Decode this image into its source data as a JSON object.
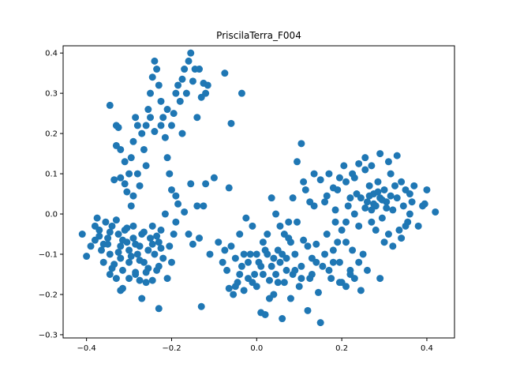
{
  "chart_data": {
    "type": "scatter",
    "title": "PriscilaTerra_F004",
    "xlabel": "",
    "ylabel": "",
    "xlim": [
      -0.455,
      0.465
    ],
    "ylim": [
      -0.308,
      0.418
    ],
    "xticks": [
      -0.4,
      -0.2,
      0.0,
      0.2,
      0.4
    ],
    "xtick_labels": [
      "−0.4",
      "−0.2",
      "0.0",
      "0.2",
      "0.4"
    ],
    "yticks": [
      -0.3,
      -0.2,
      -0.1,
      0.0,
      0.1,
      0.2,
      0.3,
      0.4
    ],
    "ytick_labels": [
      "−0.3",
      "−0.2",
      "−0.1",
      "0.0",
      "0.1",
      "0.2",
      "0.3",
      "0.4"
    ],
    "grid": false,
    "color": "#1f77b4",
    "points": [
      [
        -0.41,
        -0.05
      ],
      [
        -0.4,
        -0.105
      ],
      [
        -0.38,
        -0.065
      ],
      [
        -0.375,
        -0.01
      ],
      [
        -0.37,
        -0.04
      ],
      [
        -0.365,
        -0.09
      ],
      [
        -0.36,
        -0.12
      ],
      [
        -0.355,
        -0.02
      ],
      [
        -0.35,
        -0.06
      ],
      [
        -0.345,
        -0.1
      ],
      [
        -0.34,
        -0.135
      ],
      [
        -0.34,
        -0.03
      ],
      [
        -0.335,
        0.085
      ],
      [
        -0.33,
        0.17
      ],
      [
        -0.33,
        -0.015
      ],
      [
        -0.325,
        -0.05
      ],
      [
        -0.32,
        -0.08
      ],
      [
        -0.32,
        -0.11
      ],
      [
        -0.315,
        -0.185
      ],
      [
        -0.31,
        0.075
      ],
      [
        -0.31,
        -0.04
      ],
      [
        -0.305,
        -0.07
      ],
      [
        -0.3,
        -0.09
      ],
      [
        -0.3,
        -0.12
      ],
      [
        -0.295,
        0.02
      ],
      [
        -0.29,
        -0.03
      ],
      [
        -0.29,
        -0.06
      ],
      [
        -0.285,
        -0.15
      ],
      [
        -0.28,
        -0.1
      ],
      [
        -0.275,
        -0.08
      ],
      [
        -0.27,
        -0.05
      ],
      [
        -0.265,
        -0.12
      ],
      [
        -0.26,
        -0.17
      ],
      [
        -0.255,
        -0.09
      ],
      [
        -0.25,
        -0.06
      ],
      [
        -0.245,
        -0.03
      ],
      [
        -0.24,
        -0.1
      ],
      [
        -0.235,
        -0.14
      ],
      [
        -0.23,
        -0.07
      ],
      [
        -0.225,
        -0.04
      ],
      [
        -0.22,
        -0.11
      ],
      [
        -0.215,
        0.0
      ],
      [
        -0.21,
        -0.16
      ],
      [
        -0.205,
        -0.08
      ],
      [
        -0.2,
        -0.12
      ],
      [
        -0.195,
        -0.05
      ],
      [
        -0.19,
        -0.02
      ],
      [
        -0.35,
        -0.075
      ],
      [
        -0.345,
        -0.045
      ],
      [
        -0.335,
        -0.125
      ],
      [
        -0.325,
        -0.095
      ],
      [
        -0.315,
        -0.065
      ],
      [
        -0.305,
        -0.035
      ],
      [
        -0.295,
        -0.105
      ],
      [
        -0.285,
        -0.075
      ],
      [
        -0.275,
        -0.115
      ],
      [
        -0.265,
        -0.045
      ],
      [
        -0.255,
        -0.135
      ],
      [
        -0.245,
        -0.075
      ],
      [
        -0.235,
        -0.055
      ],
      [
        -0.225,
        -0.085
      ],
      [
        -0.285,
        -0.145
      ],
      [
        -0.275,
        -0.165
      ],
      [
        -0.26,
        -0.145
      ],
      [
        -0.245,
        -0.165
      ],
      [
        -0.23,
        -0.13
      ],
      [
        -0.3,
        -0.16
      ],
      [
        -0.315,
        -0.14
      ],
      [
        -0.33,
        -0.16
      ],
      [
        -0.345,
        -0.15
      ],
      [
        -0.36,
        -0.075
      ],
      [
        -0.37,
        -0.055
      ],
      [
        -0.38,
        -0.03
      ],
      [
        -0.39,
        -0.08
      ],
      [
        -0.33,
        0.22
      ],
      [
        -0.32,
        0.16
      ],
      [
        -0.31,
        0.13
      ],
      [
        -0.3,
        0.1
      ],
      [
        -0.295,
        0.14
      ],
      [
        -0.29,
        0.18
      ],
      [
        -0.285,
        0.24
      ],
      [
        -0.28,
        0.22
      ],
      [
        -0.275,
        0.07
      ],
      [
        -0.27,
        0.2
      ],
      [
        -0.265,
        0.16
      ],
      [
        -0.26,
        0.12
      ],
      [
        -0.255,
        0.26
      ],
      [
        -0.25,
        0.3
      ],
      [
        -0.245,
        0.34
      ],
      [
        -0.24,
        0.38
      ],
      [
        -0.235,
        0.36
      ],
      [
        -0.23,
        0.32
      ],
      [
        -0.225,
        0.28
      ],
      [
        -0.22,
        0.24
      ],
      [
        -0.215,
        0.19
      ],
      [
        -0.21,
        0.14
      ],
      [
        -0.205,
        0.1
      ],
      [
        -0.2,
        0.06
      ],
      [
        -0.195,
        0.25
      ],
      [
        -0.19,
        0.3
      ],
      [
        -0.185,
        0.32
      ],
      [
        -0.18,
        0.28
      ],
      [
        -0.175,
        0.335
      ],
      [
        -0.17,
        0.36
      ],
      [
        -0.165,
        0.3
      ],
      [
        -0.16,
        0.38
      ],
      [
        -0.155,
        0.4
      ],
      [
        -0.15,
        0.33
      ],
      [
        -0.145,
        0.36
      ],
      [
        -0.14,
        0.24
      ],
      [
        -0.135,
        0.36
      ],
      [
        -0.13,
        0.29
      ],
      [
        -0.125,
        0.325
      ],
      [
        -0.12,
        0.3
      ],
      [
        -0.115,
        0.32
      ],
      [
        -0.345,
        0.27
      ],
      [
        -0.325,
        0.215
      ],
      [
        -0.32,
        0.09
      ],
      [
        -0.305,
        0.055
      ],
      [
        -0.29,
        0.045
      ],
      [
        -0.28,
        0.1
      ],
      [
        -0.26,
        0.22
      ],
      [
        -0.25,
        0.24
      ],
      [
        -0.24,
        0.205
      ],
      [
        -0.225,
        0.22
      ],
      [
        -0.21,
        0.26
      ],
      [
        -0.2,
        0.22
      ],
      [
        -0.19,
        0.045
      ],
      [
        -0.185,
        0.025
      ],
      [
        -0.175,
        0.2
      ],
      [
        -0.17,
        0.005
      ],
      [
        -0.16,
        -0.05
      ],
      [
        -0.155,
        0.075
      ],
      [
        -0.15,
        -0.075
      ],
      [
        -0.14,
        0.02
      ],
      [
        -0.135,
        -0.06
      ],
      [
        -0.13,
        -0.23
      ],
      [
        -0.125,
        0.02
      ],
      [
        -0.12,
        0.075
      ],
      [
        -0.11,
        -0.1
      ],
      [
        -0.1,
        0.09
      ],
      [
        -0.09,
        -0.07
      ],
      [
        -0.08,
        -0.12
      ],
      [
        -0.075,
        0.35
      ],
      [
        -0.065,
        0.065
      ],
      [
        -0.06,
        0.225
      ],
      [
        -0.035,
        0.3
      ],
      [
        -0.23,
        -0.235
      ],
      [
        -0.27,
        -0.21
      ],
      [
        -0.32,
        -0.19
      ],
      [
        -0.075,
        -0.09
      ],
      [
        -0.07,
        -0.14
      ],
      [
        -0.065,
        -0.185
      ],
      [
        -0.06,
        -0.08
      ],
      [
        -0.055,
        -0.2
      ],
      [
        -0.05,
        -0.11
      ],
      [
        -0.045,
        -0.17
      ],
      [
        -0.04,
        -0.05
      ],
      [
        -0.035,
        -0.13
      ],
      [
        -0.03,
        -0.19
      ],
      [
        -0.025,
        -0.01
      ],
      [
        -0.02,
        -0.16
      ],
      [
        -0.015,
        -0.1
      ],
      [
        -0.01,
        -0.03
      ],
      [
        -0.005,
        -0.15
      ],
      [
        0.0,
        -0.18
      ],
      [
        0.005,
        -0.12
      ],
      [
        0.01,
        -0.245
      ],
      [
        0.015,
        -0.15
      ],
      [
        0.02,
        -0.25
      ],
      [
        0.025,
        -0.1
      ],
      [
        0.03,
        -0.165
      ],
      [
        0.035,
        -0.13
      ],
      [
        0.04,
        -0.2
      ],
      [
        0.045,
        -0.15
      ],
      [
        0.05,
        -0.09
      ],
      [
        0.055,
        -0.12
      ],
      [
        0.06,
        -0.26
      ],
      [
        0.065,
        -0.17
      ],
      [
        0.07,
        -0.11
      ],
      [
        0.075,
        -0.06
      ],
      [
        0.08,
        -0.21
      ],
      [
        0.085,
        -0.15
      ],
      [
        0.09,
        -0.1
      ],
      [
        0.095,
        -0.02
      ],
      [
        0.1,
        -0.18
      ],
      [
        0.105,
        -0.13
      ],
      [
        0.11,
        -0.065
      ],
      [
        0.115,
        0.06
      ],
      [
        0.12,
        -0.24
      ],
      [
        0.125,
        -0.16
      ],
      [
        0.13,
        -0.11
      ],
      [
        0.135,
        0.02
      ],
      [
        0.14,
        -0.075
      ],
      [
        0.145,
        -0.195
      ],
      [
        0.15,
        -0.27
      ],
      [
        0.155,
        -0.13
      ],
      [
        0.16,
        0.03
      ],
      [
        0.165,
        -0.05
      ],
      [
        0.17,
        0.1
      ],
      [
        0.175,
        -0.16
      ],
      [
        0.18,
        -0.09
      ],
      [
        0.185,
        -0.02
      ],
      [
        0.19,
        0.06
      ],
      [
        0.195,
        -0.12
      ],
      [
        0.2,
        -0.17
      ],
      [
        0.205,
        0.12
      ],
      [
        0.21,
        -0.07
      ],
      [
        0.215,
        0.02
      ],
      [
        0.22,
        -0.14
      ],
      [
        0.225,
        -0.09
      ],
      [
        0.23,
        0.09
      ],
      [
        0.235,
        0.05
      ],
      [
        0.24,
        -0.03
      ],
      [
        0.245,
        0.04
      ],
      [
        0.25,
        -0.1
      ],
      [
        0.255,
        0.11
      ],
      [
        0.26,
        0.03
      ],
      [
        0.265,
        0.07
      ],
      [
        0.27,
        -0.02
      ],
      [
        0.275,
        0.05
      ],
      [
        0.28,
        0.02
      ],
      [
        0.285,
        0.08
      ],
      [
        0.29,
        0.04
      ],
      [
        0.295,
        -0.01
      ],
      [
        0.3,
        0.06
      ],
      [
        0.305,
        0.03
      ],
      [
        0.31,
        -0.05
      ],
      [
        0.315,
        0.1
      ],
      [
        0.32,
        0.01
      ],
      [
        0.325,
        0.07
      ],
      [
        0.33,
        0.04
      ],
      [
        0.335,
        -0.04
      ],
      [
        0.34,
        0.08
      ],
      [
        0.345,
        0.02
      ],
      [
        0.35,
        0.06
      ],
      [
        0.355,
        -0.02
      ],
      [
        0.36,
        0.05
      ],
      [
        0.365,
        0.03
      ],
      [
        0.37,
        0.07
      ],
      [
        0.38,
        -0.03
      ],
      [
        0.39,
        0.02
      ],
      [
        0.4,
        0.06
      ],
      [
        0.42,
        0.005
      ],
      [
        0.395,
        0.025
      ],
      [
        0.33,
        0.145
      ],
      [
        0.31,
        0.13
      ],
      [
        0.29,
        0.15
      ],
      [
        0.27,
        0.12
      ],
      [
        0.255,
        0.14
      ],
      [
        0.24,
        0.125
      ],
      [
        0.225,
        0.1
      ],
      [
        0.21,
        0.08
      ],
      [
        0.195,
        0.09
      ],
      [
        0.18,
        0.065
      ],
      [
        0.165,
        0.045
      ],
      [
        0.15,
        0.085
      ],
      [
        0.135,
        0.1
      ],
      [
        0.125,
        0.03
      ],
      [
        0.11,
        0.08
      ],
      [
        0.105,
        0.175
      ],
      [
        0.095,
        0.13
      ],
      [
        0.085,
        0.04
      ],
      [
        0.075,
        -0.02
      ],
      [
        0.065,
        -0.05
      ],
      [
        0.055,
        -0.03
      ],
      [
        0.045,
        0.0
      ],
      [
        0.035,
        0.04
      ],
      [
        0.025,
        -0.05
      ],
      [
        0.015,
        -0.07
      ],
      [
        0.29,
        -0.16
      ],
      [
        0.26,
        -0.14
      ],
      [
        0.24,
        -0.12
      ],
      [
        0.22,
        -0.15
      ],
      [
        0.21,
        -0.18
      ],
      [
        0.245,
        -0.19
      ],
      [
        0.23,
        -0.16
      ],
      [
        0.195,
        -0.17
      ],
      [
        0.18,
        -0.12
      ],
      [
        0.17,
        -0.14
      ],
      [
        0.16,
        -0.1
      ],
      [
        0.14,
        -0.12
      ],
      [
        0.13,
        -0.15
      ],
      [
        0.12,
        -0.08
      ],
      [
        0.105,
        -0.16
      ],
      [
        0.09,
        -0.14
      ],
      [
        0.08,
        -0.07
      ],
      [
        0.07,
        -0.14
      ],
      [
        0.06,
        -0.1
      ],
      [
        0.05,
        -0.17
      ],
      [
        0.04,
        -0.11
      ],
      [
        0.03,
        -0.21
      ],
      [
        0.02,
        -0.09
      ],
      [
        0.01,
        -0.13
      ],
      [
        0.0,
        -0.1
      ],
      [
        -0.01,
        -0.17
      ],
      [
        -0.02,
        -0.12
      ],
      [
        -0.03,
        -0.1
      ],
      [
        -0.04,
        -0.15
      ],
      [
        -0.05,
        -0.18
      ],
      [
        0.27,
        0.01
      ],
      [
        0.275,
        0.025
      ],
      [
        0.285,
        0.055
      ],
      [
        0.295,
        0.035
      ],
      [
        0.305,
        0.015
      ],
      [
        0.315,
        0.045
      ],
      [
        0.265,
        0.045
      ],
      [
        0.255,
        0.015
      ],
      [
        0.28,
        -0.04
      ],
      [
        0.3,
        -0.07
      ],
      [
        0.32,
        -0.08
      ],
      [
        0.34,
        -0.06
      ],
      [
        0.35,
        -0.03
      ],
      [
        0.36,
        0.0
      ],
      [
        0.23,
        0.0
      ],
      [
        0.22,
        0.04
      ],
      [
        0.21,
        -0.02
      ],
      [
        0.2,
        -0.04
      ],
      [
        0.19,
        -0.07
      ],
      [
        0.185,
        0.01
      ]
    ]
  }
}
